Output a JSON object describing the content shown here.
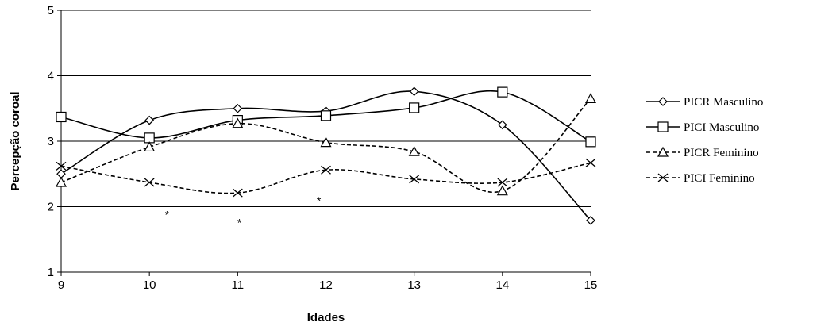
{
  "chart_data": {
    "type": "line",
    "title": "",
    "xlabel": "Idades",
    "ylabel": "Percepção coroal",
    "xlim": [
      9,
      15
    ],
    "ylim": [
      1,
      5
    ],
    "x_ticks": [
      "9",
      "10",
      "11",
      "12",
      "13",
      "14",
      "15"
    ],
    "y_ticks": [
      "1",
      "2",
      "3",
      "4",
      "5"
    ],
    "grid": "horizontal",
    "legend_position": "right",
    "x": [
      9,
      10,
      11,
      12,
      13,
      14,
      15
    ],
    "series": [
      {
        "name": "PICR Masculino",
        "values": [
          2.5,
          3.32,
          3.5,
          3.46,
          3.76,
          3.25,
          1.79
        ],
        "marker": "diamond",
        "dash": "solid",
        "color": "#000000"
      },
      {
        "name": "PICI Masculino",
        "values": [
          3.37,
          3.05,
          3.32,
          3.39,
          3.51,
          3.75,
          2.99
        ],
        "marker": "square",
        "dash": "solid",
        "color": "#000000"
      },
      {
        "name": "PICR Feminino",
        "values": [
          2.37,
          2.91,
          3.27,
          2.98,
          2.84,
          2.24,
          3.65
        ],
        "marker": "triangle",
        "dash": "dashed",
        "color": "#000000"
      },
      {
        "name": "PICI Feminino",
        "values": [
          2.62,
          2.37,
          2.21,
          2.56,
          2.42,
          2.37,
          2.67
        ],
        "marker": "x",
        "dash": "dashed",
        "color": "#000000"
      }
    ],
    "annotations": [
      {
        "text": "*",
        "x": 10.2,
        "y": 1.88
      },
      {
        "text": "*",
        "x": 11.02,
        "y": 1.76
      },
      {
        "text": "*",
        "x": 11.92,
        "y": 2.09
      }
    ]
  }
}
